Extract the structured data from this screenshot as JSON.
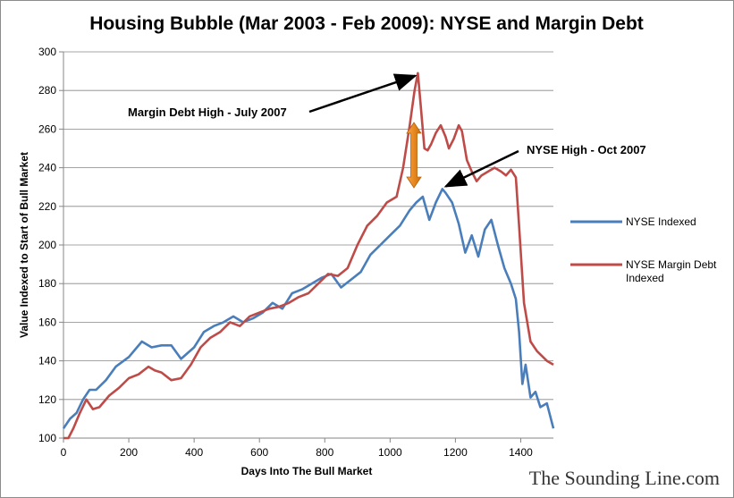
{
  "chart_data": {
    "type": "line",
    "title": "Housing Bubble (Mar 2003 - Feb 2009): NYSE and Margin Debt",
    "xlabel": "Days Into The Bull Market",
    "ylabel": "Value Indexed to Start of Bull Market",
    "xlim": [
      0,
      1500
    ],
    "ylim": [
      100,
      300
    ],
    "x_ticks": [
      0,
      200,
      400,
      600,
      800,
      1000,
      1200,
      1400
    ],
    "y_ticks": [
      100,
      120,
      140,
      160,
      180,
      200,
      220,
      240,
      260,
      280,
      300
    ],
    "grid": "horizontal",
    "legend_position": "right",
    "series": [
      {
        "name": "NYSE Indexed",
        "color": "#4a7ebb",
        "x": [
          0,
          20,
          40,
          60,
          80,
          100,
          130,
          160,
          200,
          240,
          270,
          300,
          330,
          360,
          400,
          430,
          460,
          490,
          520,
          550,
          580,
          610,
          640,
          670,
          700,
          730,
          760,
          790,
          820,
          850,
          880,
          910,
          940,
          970,
          1000,
          1030,
          1060,
          1080,
          1100,
          1120,
          1140,
          1160,
          1170,
          1190,
          1210,
          1230,
          1250,
          1270,
          1290,
          1310,
          1330,
          1350,
          1370,
          1385,
          1395,
          1405,
          1415,
          1430,
          1445,
          1460,
          1480,
          1500
        ],
        "values": [
          105,
          110,
          113,
          120,
          125,
          125,
          130,
          137,
          142,
          150,
          147,
          148,
          148,
          141,
          147,
          155,
          158,
          160,
          163,
          160,
          162,
          165,
          170,
          167,
          175,
          177,
          180,
          183,
          185,
          178,
          182,
          186,
          195,
          200,
          205,
          210,
          218,
          222,
          225,
          213,
          222,
          229,
          227,
          222,
          211,
          196,
          205,
          194,
          208,
          213,
          200,
          188,
          180,
          172,
          155,
          128,
          138,
          121,
          124,
          116,
          118,
          105
        ]
      },
      {
        "name": "NYSE Margin Debt Indexed",
        "color": "#be4b48",
        "x": [
          0,
          15,
          30,
          50,
          70,
          90,
          110,
          140,
          170,
          200,
          230,
          260,
          280,
          300,
          330,
          360,
          390,
          420,
          450,
          480,
          510,
          540,
          570,
          600,
          630,
          660,
          690,
          720,
          750,
          780,
          810,
          840,
          870,
          900,
          930,
          960,
          990,
          1020,
          1040,
          1060,
          1075,
          1085,
          1095,
          1105,
          1115,
          1125,
          1140,
          1155,
          1170,
          1180,
          1195,
          1210,
          1220,
          1235,
          1250,
          1265,
          1280,
          1300,
          1320,
          1340,
          1355,
          1370,
          1385,
          1395,
          1410,
          1430,
          1450,
          1480,
          1500
        ],
        "values": [
          100,
          100,
          105,
          113,
          120,
          115,
          116,
          122,
          126,
          131,
          133,
          137,
          135,
          134,
          130,
          131,
          138,
          147,
          152,
          155,
          160,
          158,
          163,
          165,
          167,
          168,
          170,
          173,
          175,
          180,
          185,
          184,
          188,
          200,
          210,
          215,
          222,
          225,
          240,
          262,
          280,
          289,
          270,
          250,
          249,
          252,
          258,
          262,
          256,
          250,
          255,
          262,
          259,
          244,
          238,
          233,
          236,
          238,
          240,
          238,
          236,
          239,
          235,
          210,
          170,
          150,
          145,
          140,
          138
        ]
      }
    ],
    "annotations": [
      {
        "text": "Margin Debt High - July 2007",
        "x": 1082,
        "y": 289
      },
      {
        "text": "NYSE High - Oct 2007",
        "x": 1160,
        "y": 229
      }
    ]
  },
  "brand": "The Sounding Line.com"
}
